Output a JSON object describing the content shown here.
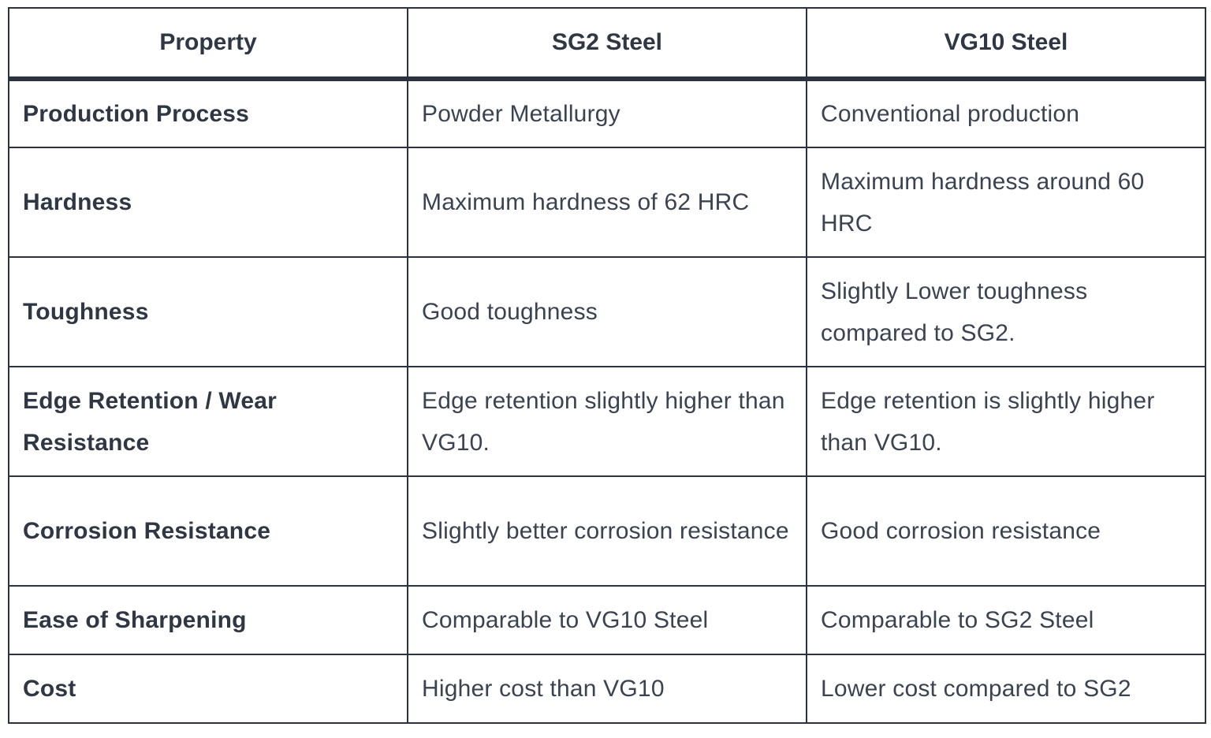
{
  "table": {
    "headers": [
      "Property",
      "SG2 Steel",
      "VG10 Steel"
    ],
    "rows": [
      {
        "property": "Production Process",
        "sg2": "Powder Metallurgy",
        "vg10": "Conventional production"
      },
      {
        "property": "Hardness",
        "sg2": "Maximum hardness of 62 HRC",
        "vg10": "Maximum hardness around 60 HRC"
      },
      {
        "property": "Toughness",
        "sg2": "Good toughness",
        "vg10": "Slightly Lower toughness compared to SG2."
      },
      {
        "property": "Edge Retention / Wear Resistance",
        "sg2": "Edge retention slightly higher than VG10.",
        "vg10": "Edge retention is slightly higher than VG10."
      },
      {
        "property": "Corrosion Resistance",
        "sg2": "Slightly better corrosion resistance",
        "vg10": "Good corrosion resistance"
      },
      {
        "property": "Ease of Sharpening",
        "sg2": "Comparable to VG10 Steel",
        "vg10": "Comparable to SG2 Steel"
      },
      {
        "property": "Cost",
        "sg2": "Higher cost than VG10",
        "vg10": "Lower cost compared to SG2"
      }
    ]
  }
}
